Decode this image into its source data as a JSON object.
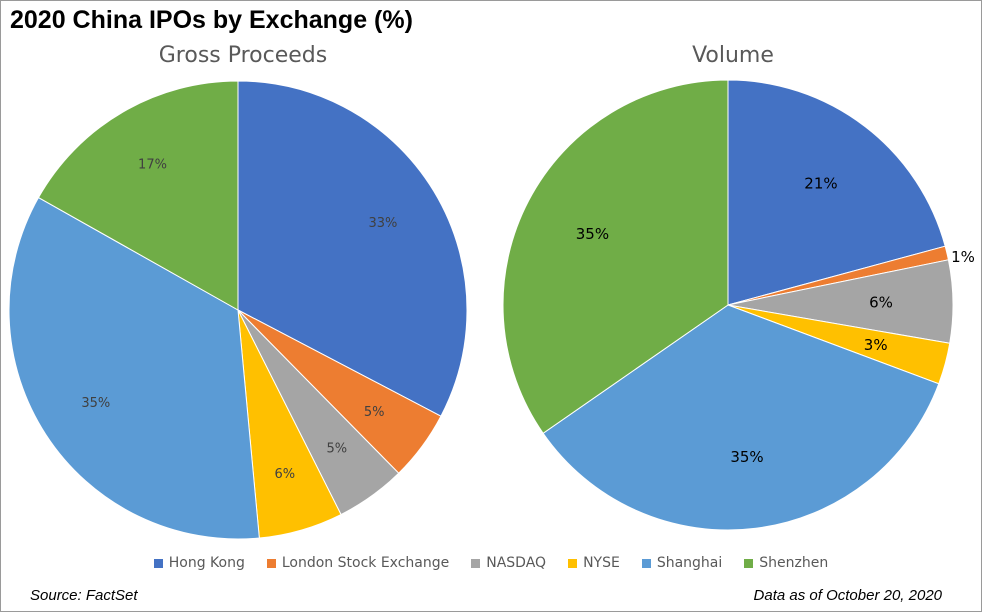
{
  "title": "2020 China IPOs by Exchange (%)",
  "footer": {
    "source": "Source: FactSet",
    "date": "Data as of October 20, 2020"
  },
  "colors": {
    "Hong Kong": "#4472C4",
    "London Stock Exchange": "#ED7D31",
    "NASDAQ": "#A5A5A5",
    "NYSE": "#FFC000",
    "Shanghai": "#5B9BD5",
    "Shenzhen": "#70AD47"
  },
  "chart_data": [
    {
      "type": "pie",
      "title": "Gross Proceeds",
      "categories": [
        "Hong Kong",
        "London Stock Exchange",
        "NASDAQ",
        "NYSE",
        "Shanghai",
        "Shenzhen"
      ],
      "values": [
        33,
        5,
        5,
        6,
        35,
        17
      ],
      "labels": [
        "33%",
        "5%",
        "5%",
        "6%",
        "35%",
        "17%"
      ]
    },
    {
      "type": "pie",
      "title": "Volume",
      "categories": [
        "Hong Kong",
        "London Stock Exchange",
        "NASDAQ",
        "NYSE",
        "Shanghai",
        "Shenzhen"
      ],
      "values": [
        21,
        1,
        6,
        3,
        35,
        35
      ],
      "labels": [
        "21%",
        "1%",
        "6%",
        "3%",
        "35%",
        "35%"
      ]
    }
  ],
  "legend": [
    "Hong Kong",
    "London Stock Exchange",
    "NASDAQ",
    "NYSE",
    "Shanghai",
    "Shenzhen"
  ]
}
